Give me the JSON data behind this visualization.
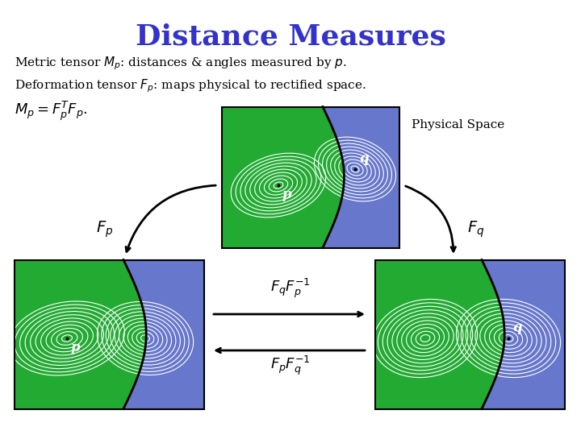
{
  "title": "Distance Measures",
  "title_color": "#3333cc",
  "title_fontsize": 26,
  "bg_color": "#ffffff",
  "green_color": "#22aa33",
  "blue_color": "#6677cc",
  "white_color": "#ffffff",
  "black_color": "#000000",
  "line1": "Metric tensor $M_p$: distances & angles measured by $p$.",
  "line2": "Deformation tensor $F_p$: maps physical to rectified space.",
  "line3_left": "$M_p = F_p^T F_p.$",
  "label_physical": "Physical Space",
  "label_Fp": "$F_p$",
  "label_Fq": "$F_q$",
  "label_FqFp": "$F_q F_p^{-1}$",
  "label_FpFq": "$F_p F_q^{-1}$"
}
